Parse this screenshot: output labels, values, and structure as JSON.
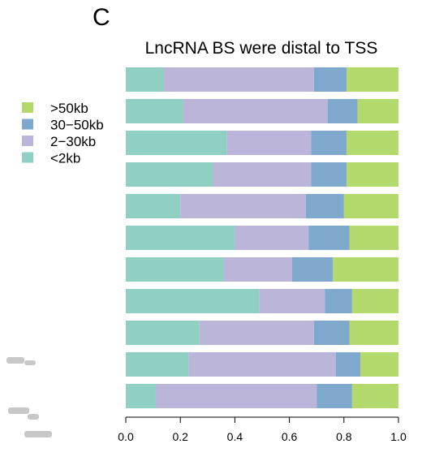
{
  "chart_data": {
    "type": "bar",
    "orientation": "horizontal",
    "stacked": true,
    "panel_label": "C",
    "title": "LncRNA BS were distal to TSS",
    "xlabel": "",
    "ylabel": "",
    "xlim": [
      0,
      1
    ],
    "x_ticks": [
      "0.0",
      "0.2",
      "0.4",
      "0.6",
      "0.8",
      "1.0"
    ],
    "x_tick_values": [
      0,
      0.2,
      0.4,
      0.6,
      0.8,
      1.0
    ],
    "grid": false,
    "legend_position": "left",
    "legend_order": [
      "<2kb",
      "2−30kb",
      "30−50kb",
      ">50kb"
    ],
    "legend_display_order": [
      ">50kb",
      "30−50kb",
      "2−30kb",
      "<2kb"
    ],
    "colors": {
      "<2kb": "#8fd0c3",
      "2−30kb": "#bcb5da",
      "30−50kb": "#7fa9cc",
      ">50kb": "#b3d86c"
    },
    "rows": [
      [
        0.14,
        0.55,
        0.12,
        0.19
      ],
      [
        0.21,
        0.53,
        0.11,
        0.15
      ],
      [
        0.37,
        0.31,
        0.13,
        0.19
      ],
      [
        0.32,
        0.36,
        0.13,
        0.19
      ],
      [
        0.2,
        0.46,
        0.14,
        0.2
      ],
      [
        0.4,
        0.27,
        0.15,
        0.18
      ],
      [
        0.36,
        0.25,
        0.15,
        0.24
      ],
      [
        0.49,
        0.24,
        0.1,
        0.17
      ],
      [
        0.27,
        0.42,
        0.13,
        0.18
      ],
      [
        0.23,
        0.54,
        0.09,
        0.14
      ],
      [
        0.11,
        0.59,
        0.13,
        0.17
      ]
    ]
  }
}
